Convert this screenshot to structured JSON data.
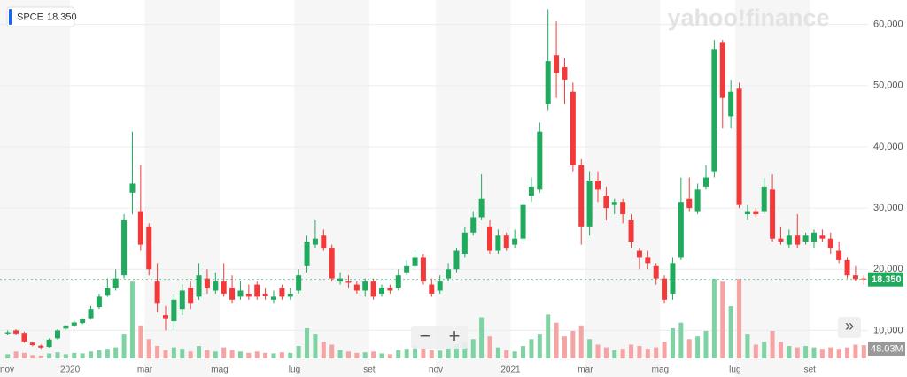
{
  "chart_data": {
    "type": "candlestick",
    "ticker": "SPCE",
    "ticker_price": "18.350",
    "watermark": "yahoo!finance",
    "buttons": [
      "−",
      "+",
      "»"
    ],
    "last_price_label": "18.350",
    "volume_label": "48.03M",
    "up_color": "#1faa5d",
    "down_color": "#f23a3a",
    "volume_up_color": "#7fd3a3",
    "volume_down_color": "#f5a3a3",
    "grid": true,
    "ylim": [
      5000,
      64000
    ],
    "yticks": [
      {
        "value": 10000,
        "label": "10,000"
      },
      {
        "value": 20000,
        "label": "20,000"
      },
      {
        "value": 30000,
        "label": "30,000"
      },
      {
        "value": 40000,
        "label": "40,000"
      },
      {
        "value": 50000,
        "label": "50,000"
      },
      {
        "value": 60000,
        "label": "60,000"
      }
    ],
    "categories": [
      "nov",
      null,
      null,
      null,
      null,
      null,
      null,
      null,
      "2020",
      null,
      null,
      null,
      null,
      null,
      null,
      null,
      null,
      "mar",
      null,
      null,
      null,
      null,
      null,
      null,
      null,
      null,
      "mag",
      null,
      null,
      null,
      null,
      null,
      null,
      null,
      null,
      "lug",
      null,
      null,
      null,
      null,
      null,
      null,
      null,
      null,
      "set",
      null,
      null,
      null,
      null,
      null,
      null,
      null,
      "nov",
      null,
      null,
      null,
      null,
      null,
      null,
      null,
      null,
      "2021",
      null,
      null,
      null,
      null,
      null,
      null,
      null,
      null,
      "mar",
      null,
      null,
      null,
      null,
      null,
      null,
      null,
      null,
      "mag",
      null,
      null,
      null,
      null,
      null,
      null,
      null,
      null,
      "lug",
      null,
      null,
      null,
      null,
      null,
      null,
      null,
      null,
      "set",
      null,
      null,
      null,
      null,
      null,
      null
    ],
    "open": [
      9500,
      10000,
      9600,
      8000,
      7500,
      7300,
      8700,
      10300,
      10800,
      11200,
      12000,
      13800,
      15800,
      17000,
      19000,
      32500,
      29500,
      27000,
      18000,
      12500,
      11500,
      13500,
      17000,
      15500,
      18500,
      16500,
      18000,
      17000,
      15500,
      16000,
      17500,
      16000,
      15000,
      17000,
      15500,
      16500,
      20500,
      24000,
      25500,
      23500,
      18000,
      18000,
      17500,
      16500,
      18000,
      16000,
      17000,
      17000,
      19500,
      20500,
      22000,
      17500,
      16500,
      18500,
      20000,
      22500,
      26000,
      28500,
      27000,
      23000,
      25500,
      24000,
      25000,
      32000,
      33000,
      47000,
      55000,
      53000,
      49000,
      37000,
      27000,
      34500,
      32000,
      30500,
      31000,
      28000,
      23000,
      22000,
      20500,
      18500,
      16000,
      22000,
      31500,
      29500,
      33500,
      36000,
      57000,
      45000,
      49500,
      29000,
      29500,
      29500,
      33000,
      25000,
      24000,
      25500,
      24500,
      24500,
      25500,
      25000,
      23000,
      21500,
      19000,
      18500
    ],
    "close": [
      9700,
      9500,
      8200,
      7600,
      7200,
      8500,
      10000,
      10800,
      11300,
      11800,
      13500,
      15500,
      17000,
      18500,
      28000,
      34000,
      24000,
      20000,
      14500,
      12000,
      15000,
      16500,
      14500,
      19000,
      17000,
      18000,
      16000,
      15000,
      16500,
      15500,
      15500,
      15700,
      15500,
      15500,
      16000,
      19000,
      24500,
      25000,
      23500,
      18500,
      18500,
      17800,
      16500,
      18000,
      15500,
      17000,
      16500,
      19000,
      20500,
      22000,
      18000,
      16000,
      18000,
      20000,
      23000,
      26000,
      28500,
      31500,
      23000,
      25500,
      23500,
      25000,
      30500,
      33500,
      42500,
      54000,
      52000,
      51000,
      37000,
      27000,
      34500,
      33000,
      30000,
      31000,
      29000,
      24500,
      22000,
      21000,
      18500,
      15000,
      21000,
      31000,
      30000,
      33000,
      35000,
      56000,
      48000,
      49000,
      30500,
      29500,
      29000,
      33500,
      25000,
      24500,
      25500,
      24000,
      25500,
      26000,
      25000,
      23500,
      21500,
      19000,
      18400,
      18350
    ],
    "high": [
      10000,
      10200,
      9800,
      8200,
      7700,
      8700,
      10200,
      11000,
      11600,
      12000,
      14000,
      16000,
      18500,
      20000,
      29000,
      42500,
      37000,
      27500,
      21000,
      14000,
      16000,
      17500,
      18000,
      21000,
      20000,
      19500,
      21000,
      19000,
      18000,
      17500,
      18000,
      17000,
      16500,
      17500,
      17000,
      20000,
      25500,
      28000,
      26500,
      24000,
      19500,
      19000,
      18000,
      18500,
      18500,
      17500,
      17500,
      20000,
      21500,
      23000,
      22500,
      18500,
      19000,
      21000,
      23500,
      27000,
      29500,
      35500,
      28000,
      26500,
      26000,
      26500,
      31000,
      35000,
      44000,
      62500,
      60500,
      54500,
      50500,
      38000,
      36000,
      36000,
      33500,
      31500,
      31500,
      29000,
      23500,
      23000,
      21000,
      19000,
      22000,
      35000,
      35000,
      34000,
      37000,
      57500,
      57500,
      51000,
      50500,
      30500,
      30000,
      35000,
      35500,
      27000,
      26500,
      29000,
      26000,
      26500,
      26500,
      26000,
      24500,
      22000,
      20500,
      19000
    ],
    "low": [
      9200,
      9300,
      8000,
      7400,
      7000,
      7200,
      8500,
      10000,
      10600,
      11000,
      11800,
      13500,
      15500,
      16500,
      18500,
      29000,
      23000,
      19000,
      13000,
      10000,
      10000,
      12500,
      13500,
      15000,
      16000,
      16000,
      15500,
      14500,
      15000,
      15000,
      15000,
      15000,
      14500,
      15000,
      15000,
      16000,
      19500,
      23500,
      23000,
      18000,
      17500,
      17000,
      16000,
      15500,
      15000,
      15500,
      16000,
      16500,
      19000,
      20000,
      17500,
      15500,
      16000,
      18000,
      19500,
      22000,
      25500,
      28000,
      22500,
      22500,
      23000,
      23500,
      24500,
      31000,
      32500,
      46000,
      48000,
      47000,
      36000,
      24000,
      25500,
      31000,
      28000,
      29000,
      27500,
      23500,
      20000,
      20000,
      17500,
      14500,
      15000,
      21500,
      29500,
      29000,
      33000,
      35000,
      43000,
      43000,
      30000,
      28000,
      28500,
      29000,
      24500,
      24000,
      23500,
      23500,
      24000,
      23500,
      24500,
      22500,
      21000,
      18500,
      18000,
      17500
    ],
    "volume": [
      15,
      25,
      20,
      12,
      10,
      18,
      22,
      15,
      20,
      18,
      25,
      30,
      35,
      40,
      90,
      280,
      120,
      70,
      45,
      30,
      40,
      35,
      25,
      45,
      30,
      25,
      40,
      30,
      25,
      20,
      25,
      20,
      18,
      22,
      20,
      45,
      110,
      90,
      60,
      50,
      30,
      25,
      20,
      22,
      25,
      18,
      15,
      30,
      35,
      45,
      40,
      30,
      28,
      40,
      50,
      60,
      70,
      150,
      80,
      40,
      30,
      25,
      45,
      70,
      90,
      160,
      130,
      80,
      100,
      120,
      70,
      50,
      40,
      30,
      35,
      50,
      45,
      35,
      40,
      60,
      110,
      130,
      70,
      80,
      100,
      290,
      280,
      190,
      290,
      90,
      50,
      60,
      100,
      60,
      45,
      40,
      45,
      40,
      35,
      40,
      35,
      40,
      50,
      48.03
    ]
  }
}
